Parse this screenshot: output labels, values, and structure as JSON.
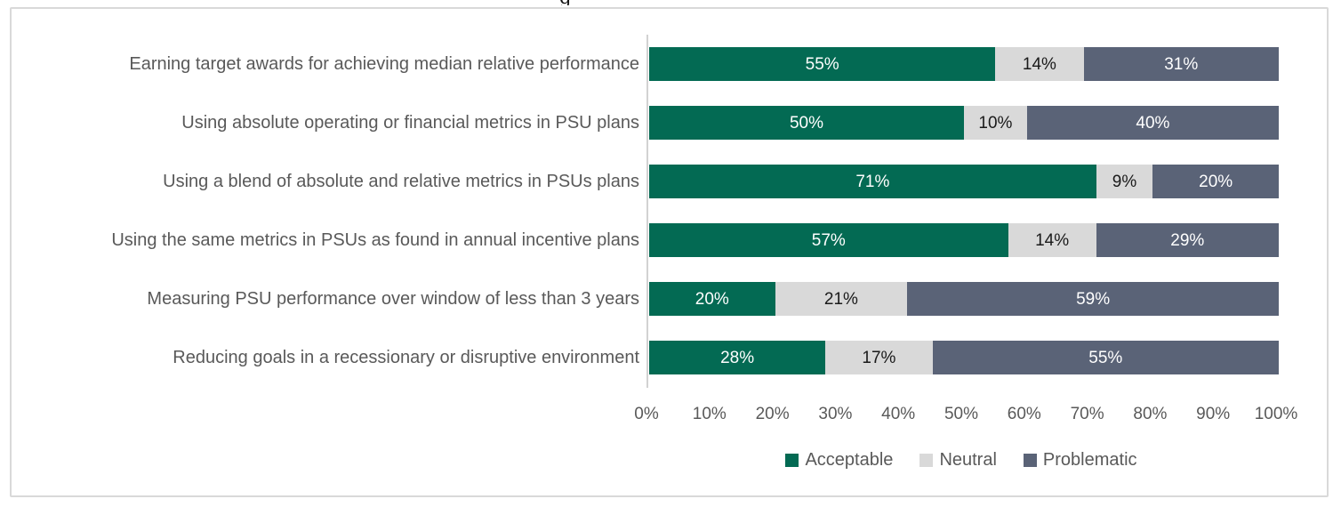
{
  "figure": {
    "background": "#FFFFFF",
    "border_color": "#D9D9D9",
    "cropped_title_fragment": "g"
  },
  "chart_data": {
    "type": "bar",
    "orientation": "horizontal",
    "stacked": true,
    "title": "",
    "xlabel": "",
    "ylabel": "",
    "xlim": [
      0,
      100
    ],
    "grid": false,
    "value_suffix": "%",
    "legend_position": "bottom",
    "axis_line_color": "#D2D2D2",
    "category_label_color": "#595959",
    "tick_label_color": "#595959",
    "categories": [
      "Earning target awards for achieving median relative performance",
      "Using absolute operating or financial metrics in PSU plans",
      "Using a blend of absolute and relative metrics in PSUs plans",
      "Using the same metrics in PSUs as found in annual incentive plans",
      "Measuring PSU performance over window of less than 3 years",
      "Reducing goals in a recessionary or disruptive environment"
    ],
    "series": [
      {
        "name": "Acceptable",
        "color": "#036A53",
        "text_color": "#FFFFFF",
        "values": [
          55,
          50,
          71,
          57,
          20,
          28
        ]
      },
      {
        "name": "Neutral",
        "color": "#D9D9D9",
        "text_color": "#1A1A1A",
        "values": [
          14,
          10,
          9,
          14,
          21,
          17
        ]
      },
      {
        "name": "Problematic",
        "color": "#5A6377",
        "text_color": "#FFFFFF",
        "values": [
          31,
          40,
          20,
          29,
          59,
          55
        ]
      }
    ],
    "x_ticks": [
      "0%",
      "10%",
      "20%",
      "30%",
      "40%",
      "50%",
      "60%",
      "70%",
      "80%",
      "90%",
      "100%"
    ]
  }
}
